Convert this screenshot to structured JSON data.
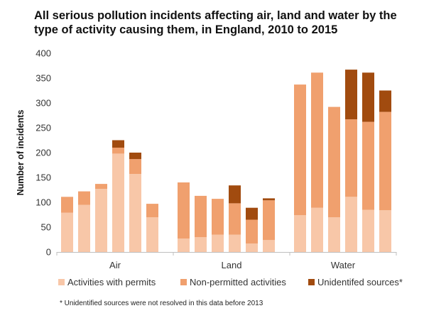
{
  "chart_data": {
    "type": "stacked-bar",
    "title": "All serious pollution incidents affecting air, land and water by the type of activity causing them, in England, 2010 to 2015",
    "ylabel": "Number of incidents",
    "ylim": [
      0,
      400
    ],
    "yticks": [
      0,
      50,
      100,
      150,
      200,
      250,
      300,
      350,
      400
    ],
    "grid": false,
    "legend_position": "bottom",
    "groups": [
      "Air",
      "Land",
      "Water"
    ],
    "series": [
      {
        "name": "Activities with permits",
        "color": "#f8c7a8",
        "values": [
          [
            79,
            95,
            127,
            198,
            157,
            70
          ],
          [
            27,
            30,
            35,
            35,
            17,
            24
          ],
          [
            74,
            89,
            70,
            111,
            85,
            84
          ]
        ]
      },
      {
        "name": "Non-permitted activities",
        "color": "#f0a06e",
        "values": [
          [
            32,
            27,
            10,
            12,
            30,
            27
          ],
          [
            113,
            83,
            72,
            63,
            48,
            80
          ],
          [
            263,
            272,
            222,
            156,
            177,
            198
          ]
        ]
      },
      {
        "name": "Unidentifed sources*",
        "color": "#a14b0f",
        "values": [
          [
            0,
            0,
            0,
            15,
            13,
            0
          ],
          [
            0,
            0,
            0,
            36,
            24,
            4
          ],
          [
            0,
            0,
            0,
            100,
            99,
            43
          ]
        ]
      }
    ],
    "footnote": "* Unidentified sources were not resolved in this data before 2013"
  }
}
